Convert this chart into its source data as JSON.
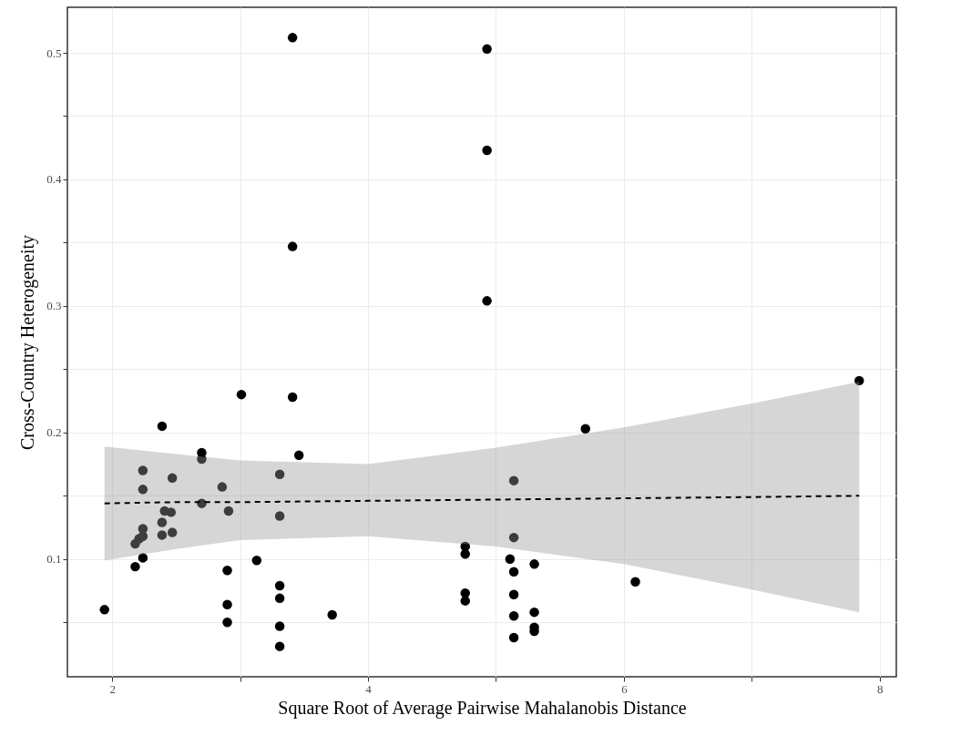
{
  "chart_data": {
    "type": "scatter",
    "xlabel": "Square Root of Average Pairwise Mahalanobis Distance",
    "ylabel": "Cross-Country Heterogeneity",
    "xlim": [
      1.65,
      8.13
    ],
    "ylim": [
      0.007,
      0.536
    ],
    "xticks": [
      2,
      {
        "value": 3,
        "label": null
      },
      4,
      {
        "value": 5,
        "label": null
      },
      6,
      {
        "value": 7,
        "label": null
      },
      8
    ],
    "yticks": [
      {
        "value": 0.05,
        "label": null
      },
      0.1,
      {
        "value": 0.15,
        "label": null
      },
      0.2,
      {
        "value": 0.25,
        "label": null
      },
      0.3,
      {
        "value": 0.35,
        "label": null
      },
      0.4,
      {
        "value": 0.45,
        "label": null
      },
      0.5
    ],
    "grid": true,
    "series": [
      {
        "marker": "circle",
        "color": "#000000",
        "x": [
          1.94,
          3.41,
          4.93,
          4.93,
          3.41,
          4.93,
          7.84,
          3.01,
          3.41,
          2.39,
          5.7,
          2.7,
          2.7,
          3.46,
          2.24,
          2.47,
          3.31,
          2.86,
          2.24,
          2.7,
          2.91,
          3.31,
          2.41,
          2.46,
          2.39,
          2.24,
          2.24,
          2.39,
          2.47,
          2.18,
          2.21,
          2.24,
          2.18,
          3.13,
          2.9,
          2.9,
          2.9,
          3.31,
          3.31,
          3.31,
          3.31,
          3.72,
          5.14,
          5.14,
          4.76,
          4.76,
          5.11,
          5.14,
          5.3,
          4.76,
          4.76,
          5.14,
          5.14,
          5.14,
          5.3,
          5.3,
          5.3,
          6.09
        ],
        "values": [
          0.06,
          0.512,
          0.503,
          0.423,
          0.347,
          0.304,
          0.241,
          0.23,
          0.228,
          0.205,
          0.203,
          0.184,
          0.179,
          0.182,
          0.17,
          0.164,
          0.167,
          0.157,
          0.155,
          0.144,
          0.138,
          0.134,
          0.138,
          0.137,
          0.129,
          0.124,
          0.118,
          0.119,
          0.121,
          0.112,
          0.116,
          0.101,
          0.094,
          0.099,
          0.091,
          0.064,
          0.05,
          0.079,
          0.069,
          0.047,
          0.031,
          0.056,
          0.162,
          0.117,
          0.11,
          0.104,
          0.1,
          0.09,
          0.096,
          0.073,
          0.067,
          0.072,
          0.055,
          0.038,
          0.058,
          0.046,
          0.043,
          0.082
        ]
      },
      {
        "type": "line",
        "color": "#000000",
        "line_style": "dashed",
        "x": [
          1.94,
          2.5,
          3,
          4,
          5,
          6,
          7,
          7.84
        ],
        "values": [
          0.144,
          0.145,
          0.145,
          0.146,
          0.147,
          0.148,
          0.149,
          0.15
        ],
        "lower": [
          0.099,
          0.108,
          0.115,
          0.118,
          0.11,
          0.096,
          0.076,
          0.058
        ],
        "upper": [
          0.189,
          0.183,
          0.178,
          0.175,
          0.188,
          0.204,
          0.223,
          0.24
        ]
      }
    ]
  }
}
